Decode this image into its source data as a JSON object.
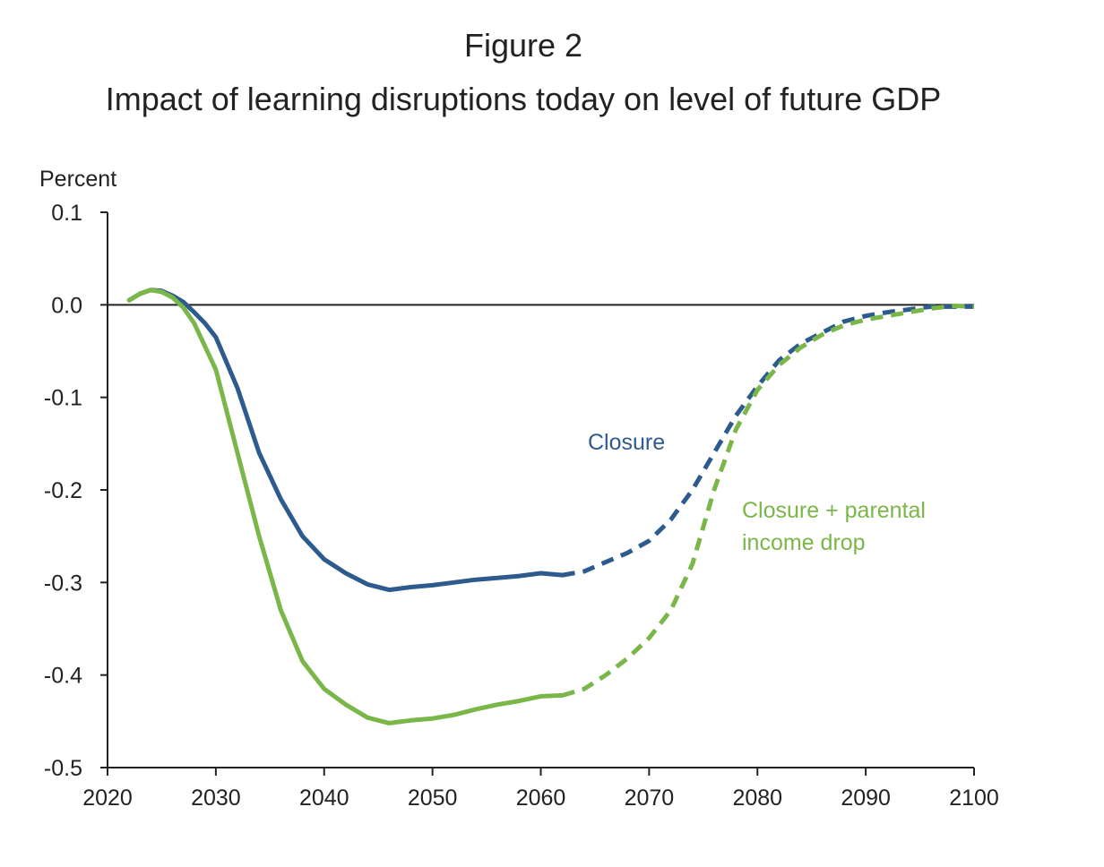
{
  "figure_label": "Figure 2",
  "chart_data": {
    "type": "line",
    "title": "Impact of learning disruptions today on level of future GDP",
    "ylabel": "Percent",
    "xlabel": "",
    "xlim": [
      2020,
      2100
    ],
    "ylim": [
      -0.5,
      0.1
    ],
    "x_ticks": [
      2020,
      2030,
      2040,
      2050,
      2060,
      2070,
      2080,
      2090,
      2100
    ],
    "y_ticks": [
      0.1,
      0.0,
      -0.1,
      -0.2,
      -0.3,
      -0.4,
      -0.5
    ],
    "x_tick_labels": [
      "2020",
      "2030",
      "2040",
      "2050",
      "2060",
      "2070",
      "2080",
      "2090",
      "2100"
    ],
    "y_tick_labels": [
      "0.1",
      "0.0",
      "-0.1",
      "-0.2",
      "-0.3",
      "-0.4",
      "-0.5"
    ],
    "grid": false,
    "zero_line": true,
    "projection_dashed_from": 2062,
    "series": [
      {
        "name": "Closure",
        "color": "#2e5b8e",
        "x": [
          2022,
          2023,
          2024,
          2025,
          2026,
          2027,
          2028,
          2029,
          2030,
          2032,
          2034,
          2036,
          2038,
          2040,
          2042,
          2044,
          2046,
          2048,
          2050,
          2052,
          2054,
          2056,
          2058,
          2060,
          2062,
          2064,
          2066,
          2068,
          2070,
          2072,
          2074,
          2076,
          2078,
          2080,
          2082,
          2084,
          2086,
          2088,
          2090,
          2092,
          2094,
          2096,
          2098,
          2100
        ],
        "y": [
          0.005,
          0.012,
          0.016,
          0.015,
          0.01,
          0.003,
          -0.008,
          -0.02,
          -0.035,
          -0.09,
          -0.16,
          -0.21,
          -0.25,
          -0.275,
          -0.29,
          -0.302,
          -0.308,
          -0.305,
          -0.303,
          -0.3,
          -0.297,
          -0.295,
          -0.293,
          -0.29,
          -0.292,
          -0.288,
          -0.278,
          -0.268,
          -0.255,
          -0.232,
          -0.2,
          -0.16,
          -0.12,
          -0.088,
          -0.06,
          -0.042,
          -0.03,
          -0.018,
          -0.012,
          -0.008,
          -0.005,
          -0.002,
          -0.002,
          -0.002
        ]
      },
      {
        "name": "Closure + parental income drop",
        "label_lines": [
          "Closure + parental",
          "income drop"
        ],
        "color": "#7ab648",
        "x": [
          2022,
          2023,
          2024,
          2025,
          2026,
          2027,
          2028,
          2029,
          2030,
          2032,
          2034,
          2036,
          2038,
          2040,
          2042,
          2044,
          2046,
          2048,
          2050,
          2052,
          2054,
          2056,
          2058,
          2060,
          2062,
          2064,
          2066,
          2068,
          2070,
          2072,
          2074,
          2076,
          2078,
          2080,
          2082,
          2084,
          2086,
          2088,
          2090,
          2092,
          2094,
          2096,
          2098,
          2100
        ],
        "y": [
          0.005,
          0.012,
          0.016,
          0.014,
          0.008,
          -0.003,
          -0.02,
          -0.045,
          -0.07,
          -0.16,
          -0.25,
          -0.33,
          -0.385,
          -0.415,
          -0.432,
          -0.446,
          -0.452,
          -0.449,
          -0.447,
          -0.443,
          -0.437,
          -0.432,
          -0.428,
          -0.423,
          -0.422,
          -0.415,
          -0.4,
          -0.382,
          -0.36,
          -0.33,
          -0.28,
          -0.2,
          -0.135,
          -0.092,
          -0.065,
          -0.046,
          -0.032,
          -0.022,
          -0.016,
          -0.012,
          -0.008,
          -0.004,
          -0.001,
          -0.002
        ]
      }
    ]
  }
}
